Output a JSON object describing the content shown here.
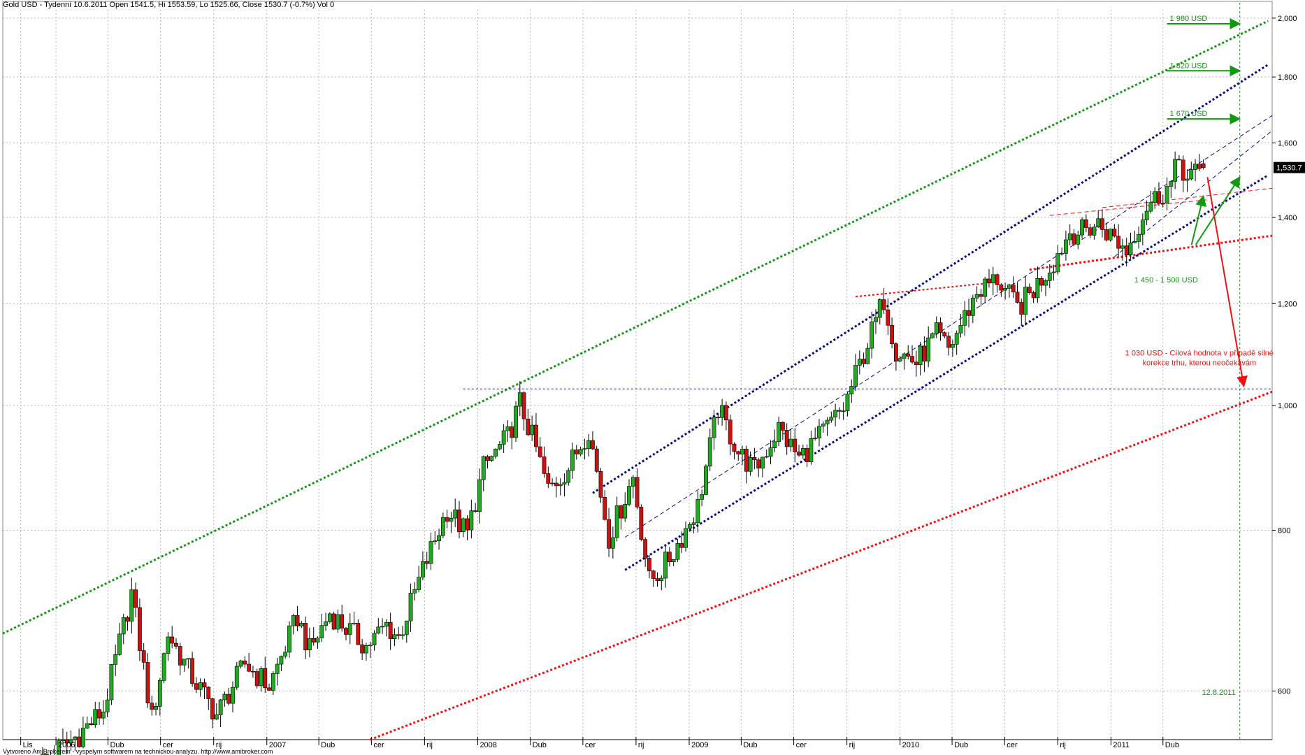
{
  "chart_title": "Gold USD - Tydenní 10.6.2011 Open 1541.5, Hi 1553.59, Lo 1525.66, Close 1530.7 (-0.7%) Vol 0",
  "footer": "Vytvoreno AmiBrokerem - vyspelym softwarem na technickou-analyzu. http://www.amibroker.com",
  "colors": {
    "bull": "#22aa22",
    "bear": "#cc1111",
    "wick": "#000000",
    "green_line": "#119911",
    "blue_line": "#0a0a80",
    "red_line": "#ee1111",
    "grid": "#b8b8b8"
  },
  "chart_data": {
    "type": "candlestick",
    "y_scale": "log",
    "ylim": [
      550,
      2030
    ],
    "yticks": [
      600,
      800,
      1000,
      1200,
      1400,
      1600,
      1800,
      2000
    ],
    "ytick_labels": [
      "600",
      "800",
      "1,000",
      "1,200",
      "1,400",
      "1,600",
      "1,800",
      "2,000"
    ],
    "last_price_label": "1,530.7",
    "last_price": 1530.7,
    "x_axis_labels": [
      {
        "label": "Lis",
        "date": "2005-11-01"
      },
      {
        "label": "2006",
        "date": "2006-01-01"
      },
      {
        "label": "Dub",
        "date": "2006-04-01"
      },
      {
        "label": "cer",
        "date": "2006-07-01"
      },
      {
        "label": "rij",
        "date": "2006-10-01"
      },
      {
        "label": "2007",
        "date": "2007-01-01"
      },
      {
        "label": "Dub",
        "date": "2007-04-01"
      },
      {
        "label": "cer",
        "date": "2007-07-01"
      },
      {
        "label": "rij",
        "date": "2007-10-01"
      },
      {
        "label": "2008",
        "date": "2008-01-01"
      },
      {
        "label": "Dub",
        "date": "2008-04-01"
      },
      {
        "label": "cer",
        "date": "2008-07-01"
      },
      {
        "label": "rij",
        "date": "2008-10-01"
      },
      {
        "label": "2009",
        "date": "2009-01-01"
      },
      {
        "label": "Dub",
        "date": "2009-04-01"
      },
      {
        "label": "cer",
        "date": "2009-07-01"
      },
      {
        "label": "rij",
        "date": "2009-10-01"
      },
      {
        "label": "2010",
        "date": "2010-01-01"
      },
      {
        "label": "Dub",
        "date": "2010-04-01"
      },
      {
        "label": "cer",
        "date": "2010-07-01"
      },
      {
        "label": "rij",
        "date": "2010-10-01"
      },
      {
        "label": "2011",
        "date": "2011-01-01"
      },
      {
        "label": "Dub",
        "date": "2011-04-01"
      }
    ],
    "x_range": [
      "2005-10-01",
      "2011-10-07"
    ],
    "price_anchors": [
      {
        "date": "2005-12-09",
        "close": 530
      },
      {
        "date": "2006-02-10",
        "close": 555
      },
      {
        "date": "2006-03-24",
        "close": 580
      },
      {
        "date": "2006-05-12",
        "close": 715
      },
      {
        "date": "2006-06-16",
        "close": 570
      },
      {
        "date": "2006-07-14",
        "close": 665
      },
      {
        "date": "2006-08-25",
        "close": 615
      },
      {
        "date": "2006-10-06",
        "close": 575
      },
      {
        "date": "2006-11-24",
        "close": 630
      },
      {
        "date": "2007-01-05",
        "close": 605
      },
      {
        "date": "2007-02-23",
        "close": 685
      },
      {
        "date": "2007-03-16",
        "close": 645
      },
      {
        "date": "2007-04-20",
        "close": 690
      },
      {
        "date": "2007-06-22",
        "close": 650
      },
      {
        "date": "2007-07-27",
        "close": 675
      },
      {
        "date": "2007-08-17",
        "close": 660
      },
      {
        "date": "2007-09-28",
        "close": 745
      },
      {
        "date": "2007-11-09",
        "close": 830
      },
      {
        "date": "2007-12-14",
        "close": 795
      },
      {
        "date": "2008-01-11",
        "close": 895
      },
      {
        "date": "2008-02-22",
        "close": 945
      },
      {
        "date": "2008-03-14",
        "close": 1005
      },
      {
        "date": "2008-04-11",
        "close": 925
      },
      {
        "date": "2008-05-02",
        "close": 860
      },
      {
        "date": "2008-06-06",
        "close": 895
      },
      {
        "date": "2008-07-11",
        "close": 960
      },
      {
        "date": "2008-08-15",
        "close": 790
      },
      {
        "date": "2008-09-26",
        "close": 880
      },
      {
        "date": "2008-10-24",
        "close": 730
      },
      {
        "date": "2008-11-14",
        "close": 745
      },
      {
        "date": "2008-12-05",
        "close": 770
      },
      {
        "date": "2009-01-16",
        "close": 835
      },
      {
        "date": "2009-02-20",
        "close": 995
      },
      {
        "date": "2009-03-27",
        "close": 920
      },
      {
        "date": "2009-04-24",
        "close": 890
      },
      {
        "date": "2009-06-05",
        "close": 960
      },
      {
        "date": "2009-07-10",
        "close": 910
      },
      {
        "date": "2009-08-14",
        "close": 945
      },
      {
        "date": "2009-09-25",
        "close": 995
      },
      {
        "date": "2009-10-16",
        "close": 1055
      },
      {
        "date": "2009-12-04",
        "close": 1210
      },
      {
        "date": "2009-12-25",
        "close": 1105
      },
      {
        "date": "2010-01-29",
        "close": 1080
      },
      {
        "date": "2010-03-05",
        "close": 1135
      },
      {
        "date": "2010-03-26",
        "close": 1105
      },
      {
        "date": "2010-05-14",
        "close": 1225
      },
      {
        "date": "2010-06-18",
        "close": 1255
      },
      {
        "date": "2010-07-23",
        "close": 1190
      },
      {
        "date": "2010-08-20",
        "close": 1230
      },
      {
        "date": "2010-09-24",
        "close": 1295
      },
      {
        "date": "2010-10-22",
        "close": 1365
      },
      {
        "date": "2010-11-12",
        "close": 1365
      },
      {
        "date": "2010-12-10",
        "close": 1385
      },
      {
        "date": "2011-01-28",
        "close": 1320
      },
      {
        "date": "2011-03-04",
        "close": 1430
      },
      {
        "date": "2011-04-15",
        "close": 1485
      },
      {
        "date": "2011-04-29",
        "close": 1555
      },
      {
        "date": "2011-05-13",
        "close": 1495
      },
      {
        "date": "2011-06-10",
        "close": 1530.7
      }
    ],
    "trendlines": [
      {
        "name": "green-upper",
        "color": "green",
        "dash": "dotted",
        "width": 3,
        "p1": [
          "2005-10-01",
          665
        ],
        "p2": [
          "2011-09-30",
          1990
        ]
      },
      {
        "name": "blue-upper",
        "color": "blue",
        "dash": "dotted",
        "width": 3,
        "p1": [
          "2008-07-18",
          855
        ],
        "p2": [
          "2011-09-30",
          1840
        ]
      },
      {
        "name": "blue-lower",
        "color": "blue",
        "dash": "dotted",
        "width": 3,
        "p1": [
          "2008-09-12",
          745
        ],
        "p2": [
          "2011-09-30",
          1510
        ]
      },
      {
        "name": "blue-mid",
        "color": "blue",
        "dash": "dashed",
        "width": 1,
        "p1": [
          "2008-09-12",
          790
        ],
        "p2": [
          "2011-10-07",
          1680
        ]
      },
      {
        "name": "blue-mid-lower",
        "color": "blue",
        "dash": "dashed",
        "width": 1,
        "p1": [
          "2011-01-07",
          1305
        ],
        "p2": [
          "2011-10-07",
          1635
        ]
      },
      {
        "name": "red-long",
        "color": "red",
        "dash": "dotted",
        "width": 3,
        "p1": [
          "2007-06-29",
          550
        ],
        "p2": [
          "2011-10-07",
          1025
        ]
      },
      {
        "name": "red-mid",
        "color": "red",
        "dash": "dotted",
        "width": 3,
        "p1": [
          "2010-08-13",
          1275
        ],
        "p2": [
          "2011-10-07",
          1355
        ]
      },
      {
        "name": "red-upper",
        "color": "red",
        "dash": "dotted",
        "width": 2,
        "p1": [
          "2009-10-16",
          1215
        ],
        "p2": [
          "2010-06-04",
          1245
        ]
      },
      {
        "name": "red-short",
        "color": "red",
        "dash": "dashed",
        "width": 1,
        "p1": [
          "2010-09-17",
          1405
        ],
        "p2": [
          "2011-06-17",
          1445
        ]
      },
      {
        "name": "red-short-2",
        "color": "red",
        "dash": "dashed",
        "width": 1,
        "p1": [
          "2010-12-17",
          1425
        ],
        "p2": [
          "2011-10-07",
          1475
        ]
      },
      {
        "name": "horizontal-1030",
        "color": "blue",
        "dash": "dotted",
        "width": 1,
        "p1": [
          "2007-12-07",
          1030
        ],
        "p2": [
          "2011-10-07",
          1030
        ]
      }
    ],
    "vertical_marker": {
      "date": "2011-08-12",
      "label": "12.8.2011"
    },
    "target_arrows": [
      {
        "label": "1 980 USD",
        "price": 1980,
        "from": "2011-04-08",
        "to": "2011-08-12"
      },
      {
        "label": "1 820 USD",
        "price": 1820,
        "from": "2011-04-08",
        "to": "2011-08-12"
      },
      {
        "label": "1 670 USD",
        "price": 1670,
        "from": "2011-04-08",
        "to": "2011-08-12"
      }
    ],
    "annotation_green": {
      "text": "1 450 - 1 500 USD",
      "anchor": [
        "2011-05-06",
        1265
      ],
      "arrow_tips": [
        [
          "2011-06-10",
          1455
        ],
        [
          "2011-08-12",
          1505
        ]
      ]
    },
    "annotation_red": {
      "lines": [
        "1 030 USD - Cílová hodnota v případě silné",
        "korekce trhu, kterou neočekávám"
      ],
      "anchor": [
        "2011-06-03",
        1080
      ],
      "arrow_from": [
        "2011-06-17",
        1505
      ],
      "arrow_to": [
        "2011-08-19",
        1035
      ]
    }
  }
}
